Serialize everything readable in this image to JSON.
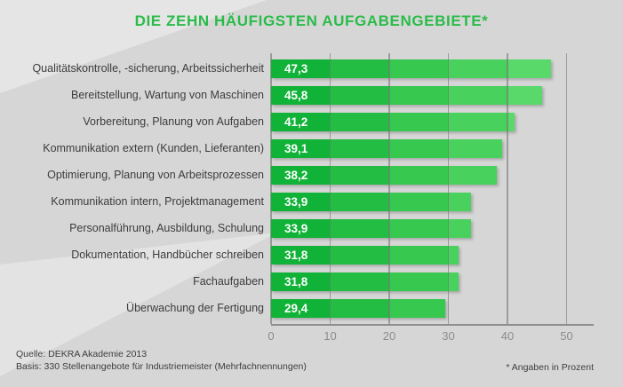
{
  "title": "DIE ZEHN HÄUFIGSTEN AUFGABENGEBIETE*",
  "footer": {
    "source_line1": "Quelle: DEKRA Akademie 2013",
    "source_line2": "Basis: 330 Stellenangebote für Industriemeister (Mehrfachnennungen)",
    "note": "* Angaben in Prozent"
  },
  "colors": {
    "background": "#d6d6d6",
    "title_green": "#2abc49",
    "bar_segments": [
      "#10b237",
      "#23bd43",
      "#37c84f",
      "#48d15d",
      "#58d96a"
    ],
    "grid_gray": "#747474",
    "axis_gray": "#8f8f8f",
    "tick_text": "#8c8c8c",
    "label_text": "#3c3c3c",
    "value_text": "#ffffff"
  },
  "chart_data": {
    "type": "bar",
    "orientation": "horizontal",
    "title": "DIE ZEHN HÄUFIGSTEN AUFGABENGEBIETE*",
    "categories": [
      "Qualitätskontrolle, -sicherung, Arbeitssicherheit",
      "Bereitstellung, Wartung von Maschinen",
      "Vorbereitung, Planung von Aufgaben",
      "Kommunikation extern (Kunden, Lieferanten)",
      "Optimierung, Planung von Arbeitsprozessen",
      "Kommunikation intern, Projektmanagement",
      "Personalführung, Ausbildung, Schulung",
      "Dokumentation, Handbücher schreiben",
      "Fachaufgaben",
      "Überwachung der Fertigung"
    ],
    "values": [
      47.3,
      45.8,
      41.2,
      39.1,
      38.2,
      33.9,
      33.9,
      31.8,
      31.8,
      29.4
    ],
    "value_labels": [
      "47,3",
      "45,8",
      "41,2",
      "39,1",
      "38,2",
      "33,9",
      "33,9",
      "31,8",
      "31,8",
      "29,4"
    ],
    "unit": "Prozent",
    "xlabel": "",
    "ylabel": "",
    "xlim": [
      0,
      55
    ],
    "x_ticks": [
      0,
      10,
      20,
      30,
      40,
      50
    ],
    "grid": true,
    "legend": false
  }
}
